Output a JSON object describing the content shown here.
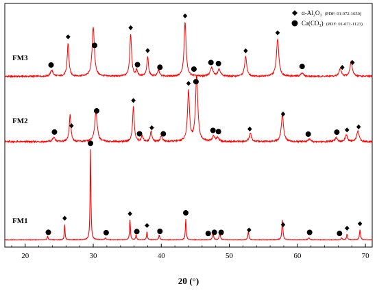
{
  "chart_data": {
    "type": "line",
    "xlabel": "2θ (°)",
    "xlim": [
      17,
      71
    ],
    "x_ticks": [
      20,
      30,
      40,
      50,
      60,
      70
    ],
    "tick_labels": [
      "20",
      "30",
      "40",
      "50",
      "60",
      "70"
    ],
    "line_color": "#ff0000",
    "grid": false,
    "legend_position": "top-right",
    "legend": [
      {
        "symbol": "diamond",
        "name": "α-Al₂O₃",
        "ref": "(PDF: 01-072-1650)"
      },
      {
        "symbol": "circle",
        "name": "Ca(CO₃)",
        "ref": "(PDF: 01-071-1123)"
      }
    ],
    "series": [
      {
        "name": "FM3",
        "baseline": 0.05,
        "peaks": [
          {
            "x": 23.9,
            "h": 0.1,
            "w": 0.45
          },
          {
            "x": 26.3,
            "h": 0.55,
            "w": 0.3
          },
          {
            "x": 30.0,
            "h": 0.82,
            "w": 0.4
          },
          {
            "x": 35.5,
            "h": 0.7,
            "w": 0.32
          },
          {
            "x": 36.4,
            "h": 0.1,
            "w": 0.3
          },
          {
            "x": 38.0,
            "h": 0.32,
            "w": 0.3
          },
          {
            "x": 39.6,
            "h": 0.1,
            "w": 0.35
          },
          {
            "x": 43.5,
            "h": 0.9,
            "w": 0.35
          },
          {
            "x": 47.4,
            "h": 0.14,
            "w": 0.5
          },
          {
            "x": 48.5,
            "h": 0.12,
            "w": 0.45
          },
          {
            "x": 52.4,
            "h": 0.32,
            "w": 0.38
          },
          {
            "x": 57.1,
            "h": 0.62,
            "w": 0.42
          },
          {
            "x": 60.7,
            "h": 0.06,
            "w": 0.4
          },
          {
            "x": 66.3,
            "h": 0.13,
            "w": 0.4
          },
          {
            "x": 67.9,
            "h": 0.25,
            "w": 0.4
          }
        ],
        "diamond_markers": [
          26.3,
          35.5,
          38.0,
          43.5,
          52.4,
          57.1,
          66.6,
          68.1
        ],
        "circle_markers": [
          23.8,
          30.2,
          36.5,
          39.8,
          44.8,
          47.3,
          48.4,
          60.7
        ]
      },
      {
        "name": "FM2",
        "baseline": 0.05,
        "peaks": [
          {
            "x": 24.2,
            "h": 0.06,
            "w": 0.45
          },
          {
            "x": 26.6,
            "h": 0.4,
            "w": 0.3
          },
          {
            "x": 30.4,
            "h": 0.44,
            "w": 0.45
          },
          {
            "x": 35.9,
            "h": 0.52,
            "w": 0.3
          },
          {
            "x": 37.2,
            "h": 0.08,
            "w": 0.3
          },
          {
            "x": 38.5,
            "h": 0.16,
            "w": 0.3
          },
          {
            "x": 40.0,
            "h": 0.08,
            "w": 0.35
          },
          {
            "x": 44.0,
            "h": 0.75,
            "w": 0.35
          },
          {
            "x": 45.2,
            "h": 0.98,
            "w": 0.4
          },
          {
            "x": 47.7,
            "h": 0.08,
            "w": 0.4
          },
          {
            "x": 48.3,
            "h": 0.06,
            "w": 0.4
          },
          {
            "x": 53.1,
            "h": 0.12,
            "w": 0.4
          },
          {
            "x": 57.8,
            "h": 0.4,
            "w": 0.4
          },
          {
            "x": 61.8,
            "h": 0.04,
            "w": 0.4
          },
          {
            "x": 65.7,
            "h": 0.06,
            "w": 0.4
          },
          {
            "x": 67.2,
            "h": 0.1,
            "w": 0.4
          },
          {
            "x": 68.9,
            "h": 0.16,
            "w": 0.4
          }
        ],
        "diamond_markers": [
          26.8,
          35.9,
          38.6,
          44.0,
          53.0,
          57.9,
          67.3,
          69.0
        ],
        "circle_markers": [
          24.3,
          30.5,
          36.8,
          40.3,
          45.1,
          47.6,
          48.4,
          61.6,
          65.8
        ]
      },
      {
        "name": "FM1",
        "baseline": 0.02,
        "peaks": [
          {
            "x": 23.3,
            "h": 0.04,
            "w": 0.15
          },
          {
            "x": 25.8,
            "h": 0.17,
            "w": 0.13
          },
          {
            "x": 29.6,
            "h": 1.0,
            "w": 0.14
          },
          {
            "x": 31.8,
            "h": 0.02,
            "w": 0.2
          },
          {
            "x": 35.4,
            "h": 0.22,
            "w": 0.15
          },
          {
            "x": 36.3,
            "h": 0.06,
            "w": 0.15
          },
          {
            "x": 37.9,
            "h": 0.09,
            "w": 0.15
          },
          {
            "x": 39.7,
            "h": 0.05,
            "w": 0.2
          },
          {
            "x": 43.6,
            "h": 0.23,
            "w": 0.15
          },
          {
            "x": 47.6,
            "h": 0.08,
            "w": 0.18
          },
          {
            "x": 48.6,
            "h": 0.08,
            "w": 0.18
          },
          {
            "x": 52.8,
            "h": 0.09,
            "w": 0.18
          },
          {
            "x": 57.8,
            "h": 0.22,
            "w": 0.18
          },
          {
            "x": 61.7,
            "h": 0.02,
            "w": 0.3
          },
          {
            "x": 66.5,
            "h": 0.02,
            "w": 0.2
          },
          {
            "x": 67.3,
            "h": 0.06,
            "w": 0.18
          },
          {
            "x": 69.2,
            "h": 0.11,
            "w": 0.18
          }
        ],
        "diamond_markers": [
          25.8,
          35.4,
          37.9,
          43.6,
          52.9,
          57.9,
          67.3,
          69.2
        ],
        "circle_markers": [
          23.4,
          29.6,
          31.9,
          36.4,
          39.8,
          43.6,
          46.9,
          47.8,
          48.8,
          61.8,
          66.2
        ]
      }
    ]
  }
}
